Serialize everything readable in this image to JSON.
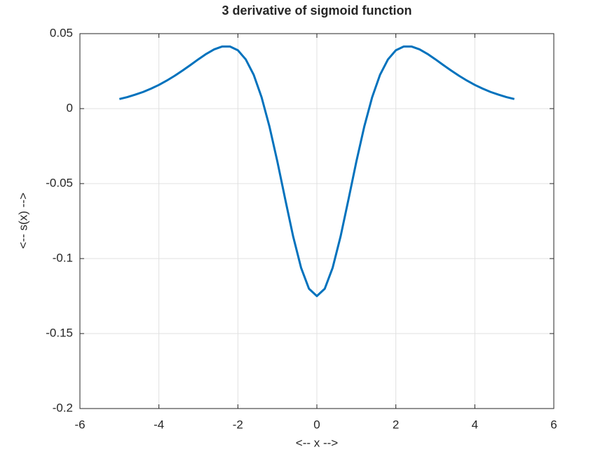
{
  "chart_data": {
    "type": "line",
    "title": "3 derivative of sigmoid function",
    "x_label": "<-- x -->",
    "y_label": "<-- s(x) -->",
    "x": [
      -5,
      -4.8,
      -4.6,
      -4.4,
      -4.2,
      -4,
      -3.8,
      -3.6,
      -3.4,
      -3.2,
      -3,
      -2.8,
      -2.6,
      -2.4,
      -2.2,
      -2,
      -1.8,
      -1.6,
      -1.4,
      -1.2,
      -1,
      -0.8,
      -0.6,
      -0.4,
      -0.2,
      0,
      0.2,
      0.4,
      0.6,
      0.8,
      1,
      1.2,
      1.4,
      1.6,
      1.8,
      2,
      2.2,
      2.4,
      2.6,
      2.8,
      3,
      3.2,
      3.4,
      3.6,
      3.8,
      4,
      4.2,
      4.4,
      4.6,
      4.8,
      5
    ],
    "series": [
      {
        "color": "#0072bd",
        "values": [
          0.0064,
          0.0077,
          0.0093,
          0.0111,
          0.0133,
          0.0158,
          0.0187,
          0.0219,
          0.0254,
          0.0291,
          0.0329,
          0.0365,
          0.0395,
          0.0414,
          0.0414,
          0.0389,
          0.0328,
          0.0226,
          0.0076,
          -0.012,
          -0.0353,
          -0.0606,
          -0.0853,
          -0.1061,
          -0.1201,
          -0.125,
          -0.1201,
          -0.1061,
          -0.0853,
          -0.0606,
          -0.0353,
          -0.012,
          0.0076,
          0.0226,
          0.0328,
          0.0389,
          0.0414,
          0.0414,
          0.0395,
          0.0365,
          0.0329,
          0.0291,
          0.0254,
          0.0219,
          0.0187,
          0.0158,
          0.0133,
          0.0111,
          0.0093,
          0.0077,
          0.0064
        ]
      }
    ],
    "xlim": [
      -6,
      6
    ],
    "ylim": [
      -0.2,
      0.05
    ],
    "xticks": [
      -6,
      -4,
      -2,
      0,
      2,
      4,
      6
    ],
    "yticks": [
      -0.2,
      -0.15,
      -0.1,
      -0.05,
      0,
      0.05
    ],
    "grid": true
  }
}
